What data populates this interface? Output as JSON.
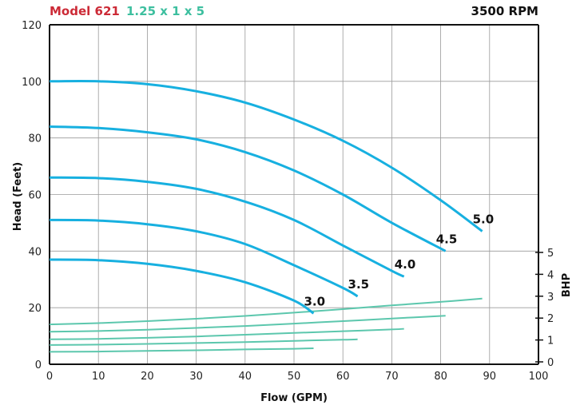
{
  "header": {
    "model": "Model 621",
    "size": "1.25 x 1 x 5",
    "rpm": "3500 RPM"
  },
  "colors": {
    "head_curve": "#17b0e0",
    "bhp_curve": "#5cc7ad",
    "model_text": "#cc2a36",
    "size_text": "#3dbf9f",
    "grid": "#9a9a9a"
  },
  "chart_data": {
    "type": "line",
    "xlabel": "Flow (GPM)",
    "ylabel": "Head (Feet)",
    "y2label": "BHP",
    "xlim": [
      0,
      100
    ],
    "ylim": [
      0,
      120
    ],
    "y2lim": [
      0,
      5
    ],
    "x_ticks": [
      0,
      10,
      20,
      30,
      40,
      50,
      60,
      70,
      80,
      90,
      100
    ],
    "y_ticks": [
      0,
      20,
      40,
      60,
      80,
      100,
      120
    ],
    "y2_ticks": [
      0,
      1,
      2,
      3,
      4,
      5
    ],
    "grid": true,
    "head_series": [
      {
        "name": "3.0",
        "points": [
          [
            0,
            37
          ],
          [
            10,
            36.8
          ],
          [
            20,
            35.5
          ],
          [
            30,
            33
          ],
          [
            40,
            29
          ],
          [
            50,
            22.5
          ],
          [
            54,
            18
          ]
        ]
      },
      {
        "name": "3.5",
        "points": [
          [
            0,
            51
          ],
          [
            10,
            50.8
          ],
          [
            20,
            49.5
          ],
          [
            30,
            47
          ],
          [
            40,
            42.5
          ],
          [
            50,
            35
          ],
          [
            60,
            27
          ],
          [
            63,
            24
          ]
        ]
      },
      {
        "name": "4.0",
        "points": [
          [
            0,
            66
          ],
          [
            10,
            65.8
          ],
          [
            20,
            64.5
          ],
          [
            30,
            62
          ],
          [
            40,
            57.5
          ],
          [
            50,
            51
          ],
          [
            60,
            42
          ],
          [
            70,
            33
          ],
          [
            72.5,
            31
          ]
        ]
      },
      {
        "name": "4.5",
        "points": [
          [
            0,
            84
          ],
          [
            10,
            83.5
          ],
          [
            20,
            82
          ],
          [
            30,
            79.5
          ],
          [
            40,
            75
          ],
          [
            50,
            68.5
          ],
          [
            60,
            60
          ],
          [
            70,
            50
          ],
          [
            81,
            40
          ]
        ]
      },
      {
        "name": "5.0",
        "points": [
          [
            0,
            100
          ],
          [
            10,
            100
          ],
          [
            20,
            99
          ],
          [
            30,
            96.5
          ],
          [
            40,
            92.5
          ],
          [
            50,
            86.5
          ],
          [
            60,
            79
          ],
          [
            70,
            69.5
          ],
          [
            80,
            58
          ],
          [
            88.5,
            47
          ]
        ]
      }
    ],
    "bhp_series": [
      {
        "points": [
          [
            0,
            0.46
          ],
          [
            10,
            0.47
          ],
          [
            20,
            0.5
          ],
          [
            30,
            0.53
          ],
          [
            40,
            0.57
          ],
          [
            50,
            0.6
          ],
          [
            54,
            0.62
          ]
        ]
      },
      {
        "points": [
          [
            0,
            0.77
          ],
          [
            10,
            0.79
          ],
          [
            20,
            0.82
          ],
          [
            30,
            0.86
          ],
          [
            40,
            0.9
          ],
          [
            50,
            0.96
          ],
          [
            60,
            1.01
          ],
          [
            63,
            1.03
          ]
        ]
      },
      {
        "points": [
          [
            0,
            1.03
          ],
          [
            10,
            1.05
          ],
          [
            20,
            1.1
          ],
          [
            30,
            1.16
          ],
          [
            40,
            1.24
          ],
          [
            50,
            1.32
          ],
          [
            60,
            1.4
          ],
          [
            70,
            1.48
          ],
          [
            72.5,
            1.51
          ]
        ]
      },
      {
        "points": [
          [
            0,
            1.38
          ],
          [
            10,
            1.41
          ],
          [
            20,
            1.47
          ],
          [
            30,
            1.55
          ],
          [
            40,
            1.64
          ],
          [
            50,
            1.75
          ],
          [
            60,
            1.86
          ],
          [
            70,
            1.98
          ],
          [
            81,
            2.11
          ]
        ]
      },
      {
        "points": [
          [
            0,
            1.71
          ],
          [
            10,
            1.77
          ],
          [
            20,
            1.86
          ],
          [
            30,
            1.97
          ],
          [
            40,
            2.1
          ],
          [
            50,
            2.25
          ],
          [
            60,
            2.41
          ],
          [
            70,
            2.58
          ],
          [
            80,
            2.74
          ],
          [
            88.5,
            2.89
          ]
        ]
      }
    ]
  }
}
